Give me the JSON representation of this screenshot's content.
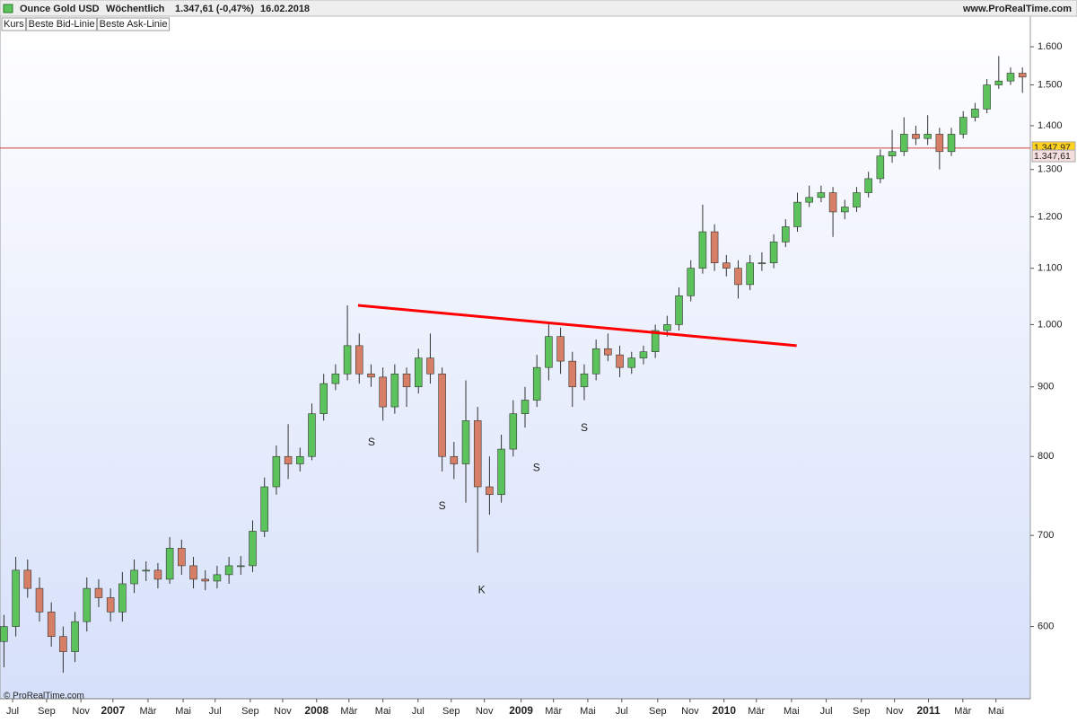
{
  "chart_data": {
    "type": "candlestick",
    "title": "Ounce Gold USD",
    "period": "Wöchentlich",
    "quote": "1.347,61 (-0,47%)",
    "date": "16.02.2018",
    "site": "www.ProRealTime.com",
    "watermark": "© ProRealTime.com",
    "legend": [
      {
        "name": "Kurs",
        "color": "#222222"
      },
      {
        "name": "Beste Bid-Linie",
        "color": "#4caf50"
      },
      {
        "name": "Beste Ask-Linie",
        "color": "#e06060"
      }
    ],
    "log_scale": true,
    "up_color": "#5cc25c",
    "down_color": "#d77f66",
    "x": [
      1,
      4,
      7,
      10,
      13,
      16,
      19,
      22,
      25,
      28,
      31,
      34,
      37,
      40,
      43,
      46,
      49,
      52,
      55,
      58,
      61,
      64,
      67,
      70,
      73,
      76,
      79,
      82,
      85,
      88,
      91,
      94,
      97,
      100,
      103,
      106,
      109,
      112,
      115,
      118,
      121,
      124,
      127,
      130,
      133,
      136,
      139,
      142,
      145,
      148,
      151,
      154,
      157,
      160,
      163,
      166,
      169,
      172,
      175,
      178,
      181,
      184,
      187,
      190,
      193,
      196,
      199,
      202,
      205,
      208,
      211,
      214,
      217,
      220,
      223,
      226,
      229,
      232,
      235,
      238,
      241,
      244,
      247,
      250,
      253,
      256,
      259
    ],
    "open": [
      585,
      600,
      660,
      640,
      615,
      590,
      575,
      605,
      640,
      630,
      615,
      645,
      660,
      660,
      650,
      685,
      665,
      650,
      648,
      655,
      665,
      665,
      705,
      760,
      800,
      790,
      800,
      860,
      905,
      920,
      965,
      920,
      915,
      870,
      920,
      900,
      945,
      920,
      800,
      790,
      850,
      760,
      750,
      810,
      860,
      880,
      930,
      980,
      940,
      900,
      920,
      960,
      950,
      930,
      945,
      955,
      990,
      1000,
      1050,
      1100,
      1170,
      1110,
      1100,
      1070,
      1110,
      1110,
      1150,
      1180,
      1230,
      1240,
      1250,
      1210,
      1220,
      1250,
      1280,
      1330,
      1340,
      1380,
      1370,
      1380,
      1340,
      1380,
      1420,
      1440,
      1500,
      1510,
      1530
    ],
    "high": [
      612,
      675,
      672,
      652,
      625,
      600,
      615,
      652,
      650,
      640,
      658,
      672,
      670,
      668,
      698,
      695,
      675,
      660,
      665,
      675,
      676,
      718,
      772,
      815,
      845,
      812,
      875,
      920,
      935,
      1033,
      985,
      935,
      930,
      935,
      930,
      960,
      985,
      930,
      820,
      910,
      870,
      800,
      830,
      880,
      900,
      950,
      1005,
      995,
      955,
      935,
      975,
      985,
      965,
      955,
      965,
      1000,
      1015,
      1065,
      1115,
      1225,
      1185,
      1125,
      1115,
      1125,
      1130,
      1165,
      1195,
      1250,
      1265,
      1265,
      1262,
      1235,
      1262,
      1295,
      1345,
      1390,
      1420,
      1400,
      1425,
      1395,
      1395,
      1435,
      1455,
      1515,
      1575,
      1545,
      1545
    ],
    "low": [
      560,
      590,
      630,
      605,
      580,
      555,
      565,
      595,
      620,
      605,
      605,
      635,
      648,
      640,
      645,
      655,
      640,
      638,
      640,
      645,
      655,
      658,
      698,
      750,
      770,
      780,
      795,
      850,
      895,
      910,
      905,
      900,
      850,
      860,
      870,
      890,
      905,
      780,
      770,
      740,
      680,
      725,
      740,
      800,
      840,
      870,
      910,
      920,
      870,
      880,
      910,
      940,
      915,
      920,
      935,
      945,
      980,
      990,
      1040,
      1090,
      1095,
      1085,
      1045,
      1060,
      1095,
      1100,
      1140,
      1170,
      1220,
      1230,
      1160,
      1195,
      1210,
      1240,
      1270,
      1315,
      1330,
      1355,
      1355,
      1300,
      1330,
      1370,
      1410,
      1430,
      1490,
      1500,
      1480
    ],
    "close": [
      600,
      660,
      640,
      615,
      590,
      575,
      605,
      640,
      630,
      615,
      645,
      660,
      660,
      650,
      685,
      665,
      650,
      648,
      655,
      665,
      665,
      705,
      760,
      800,
      790,
      800,
      860,
      905,
      920,
      965,
      920,
      915,
      870,
      920,
      900,
      945,
      920,
      800,
      790,
      850,
      760,
      750,
      810,
      860,
      880,
      930,
      980,
      940,
      900,
      920,
      960,
      950,
      930,
      945,
      955,
      990,
      1000,
      1050,
      1100,
      1170,
      1110,
      1100,
      1070,
      1110,
      1110,
      1150,
      1180,
      1230,
      1240,
      1250,
      1210,
      1220,
      1250,
      1280,
      1330,
      1340,
      1380,
      1370,
      1380,
      1340,
      1380,
      1420,
      1440,
      1500,
      1510,
      1530,
      1520
    ],
    "xlim": [
      0,
      261
    ],
    "ylim": [
      531,
      1685
    ],
    "xticks": [
      {
        "value": 3.2,
        "label": "Jul"
      },
      {
        "value": 11.8,
        "label": "Sep"
      },
      {
        "value": 20.5,
        "label": "Nov"
      },
      {
        "value": 28.6,
        "label": "2007"
      },
      {
        "value": 37.5,
        "label": "Mär"
      },
      {
        "value": 46.4,
        "label": "Mai"
      },
      {
        "value": 54.5,
        "label": "Jul"
      },
      {
        "value": 63.4,
        "label": "Sep"
      },
      {
        "value": 71.6,
        "label": "Nov"
      },
      {
        "value": 80.2,
        "label": "2008"
      },
      {
        "value": 88.4,
        "label": "Mär"
      },
      {
        "value": 97,
        "label": "Mai"
      },
      {
        "value": 105.9,
        "label": "Jul"
      },
      {
        "value": 114.3,
        "label": "Sep"
      },
      {
        "value": 122.7,
        "label": "Nov"
      },
      {
        "value": 132,
        "label": "2009"
      },
      {
        "value": 140.2,
        "label": "Mär"
      },
      {
        "value": 148.9,
        "label": "Mai"
      },
      {
        "value": 157.5,
        "label": "Jul"
      },
      {
        "value": 166.6,
        "label": "Sep"
      },
      {
        "value": 174.8,
        "label": "Nov"
      },
      {
        "value": 183.4,
        "label": "2010"
      },
      {
        "value": 191.6,
        "label": "Mär"
      },
      {
        "value": 200.5,
        "label": "Mai"
      },
      {
        "value": 209.3,
        "label": "Jul"
      },
      {
        "value": 218.2,
        "label": "Sep"
      },
      {
        "value": 226.6,
        "label": "Nov"
      },
      {
        "value": 235.2,
        "label": "2011"
      },
      {
        "value": 243.9,
        "label": "Mär"
      },
      {
        "value": 252.3,
        "label": "Mai"
      }
    ],
    "yticks": [
      600,
      700,
      800,
      900,
      {
        "value": 1000,
        "label": "1.000"
      },
      {
        "value": 1100,
        "label": "1.100"
      },
      {
        "value": 1200,
        "label": "1.200"
      },
      {
        "value": 1300,
        "label": "1.300"
      },
      {
        "value": 1400,
        "label": "1.400"
      },
      {
        "value": 1500,
        "label": "1.500"
      },
      {
        "value": 1600,
        "label": "1.600"
      }
    ],
    "trendline": {
      "x": [
        90.7,
        201.8
      ],
      "y": [
        1033,
        965
      ],
      "color": "#ff0000"
    },
    "level": {
      "value": 1347.97,
      "color": "#d04040"
    },
    "price_tags": [
      {
        "value": 1347.97,
        "label": "1.347,97",
        "color": "#ffd21f"
      },
      {
        "value": 1347.61,
        "label": "1.347,61",
        "color": "#f4dede"
      }
    ],
    "annotations": [
      {
        "text": "S",
        "x": 94.1,
        "y": 819
      },
      {
        "text": "S",
        "x": 112,
        "y": 735
      },
      {
        "text": "K",
        "x": 122,
        "y": 638
      },
      {
        "text": "S",
        "x": 135.9,
        "y": 784
      },
      {
        "text": "S",
        "x": 148,
        "y": 839
      }
    ]
  }
}
